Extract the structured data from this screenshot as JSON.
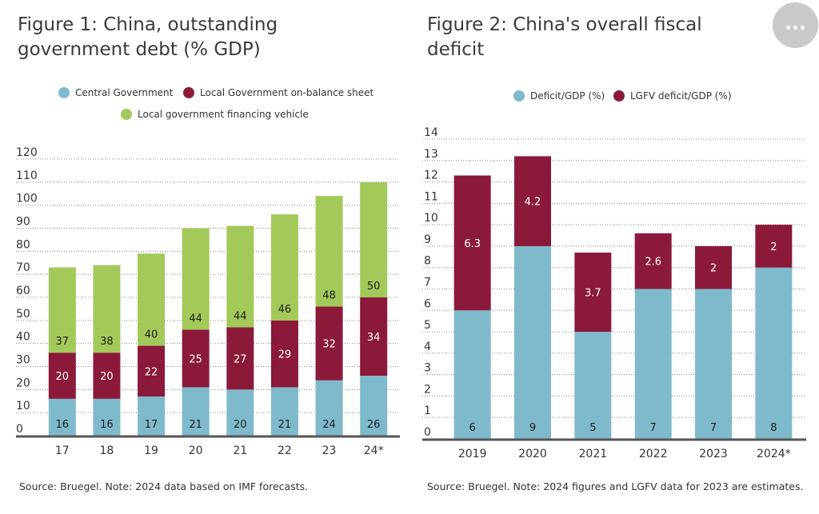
{
  "figure1": {
    "title": "Figure 1: China, outstanding government debt (% GDP)",
    "source": "Source: Bruegel. Note: 2024 data based on IMF forecasts.",
    "colors": {
      "central": "#7fb9cc",
      "local": "#8b1a3a",
      "lgfv": "#a3c95a"
    }
  },
  "figure2": {
    "title": "Figure 2: China's overall fiscal deficit",
    "source": "Source: Bruegel. Note: 2024 figures and LGFV data for 2023 are estimates.",
    "colors": {
      "deficit": "#7fb9cc",
      "lgfv": "#8b1a3a"
    }
  },
  "menu": {
    "icon": "more-horizontal-icon"
  },
  "chart_data": [
    {
      "type": "bar",
      "stacked": true,
      "title": "Figure 1: China, outstanding government debt (% GDP)",
      "categories": [
        "17",
        "18",
        "19",
        "20",
        "21",
        "22",
        "23",
        "24*"
      ],
      "series": [
        {
          "name": "Central Government",
          "values": [
            16,
            16,
            17,
            21,
            20,
            21,
            24,
            26
          ]
        },
        {
          "name": "Local Government on-balance sheet",
          "values": [
            20,
            20,
            22,
            25,
            27,
            29,
            32,
            34
          ]
        },
        {
          "name": "Local government financing vehicle",
          "values": [
            37,
            38,
            40,
            44,
            44,
            46,
            48,
            50
          ]
        }
      ],
      "ylim": [
        0,
        120
      ],
      "yticks": [
        0,
        10,
        20,
        30,
        40,
        50,
        60,
        70,
        80,
        90,
        100,
        110,
        120
      ],
      "grid": true,
      "legend": "top"
    },
    {
      "type": "bar",
      "stacked": true,
      "title": "Figure 2: China's overall fiscal deficit",
      "categories": [
        "2019",
        "2020",
        "2021",
        "2022",
        "2023",
        "2024*"
      ],
      "series": [
        {
          "name": "Deficit/GDP (%)",
          "values": [
            6,
            9,
            5,
            7,
            7,
            8
          ]
        },
        {
          "name": "LGFV deficit/GDP (%)",
          "values": [
            6.3,
            4.2,
            3.7,
            2.6,
            2,
            2
          ]
        }
      ],
      "ylim": [
        0,
        14
      ],
      "yticks": [
        0,
        1,
        2,
        3,
        4,
        5,
        6,
        7,
        8,
        9,
        10,
        11,
        12,
        13,
        14
      ],
      "grid": true,
      "legend": "top"
    }
  ]
}
